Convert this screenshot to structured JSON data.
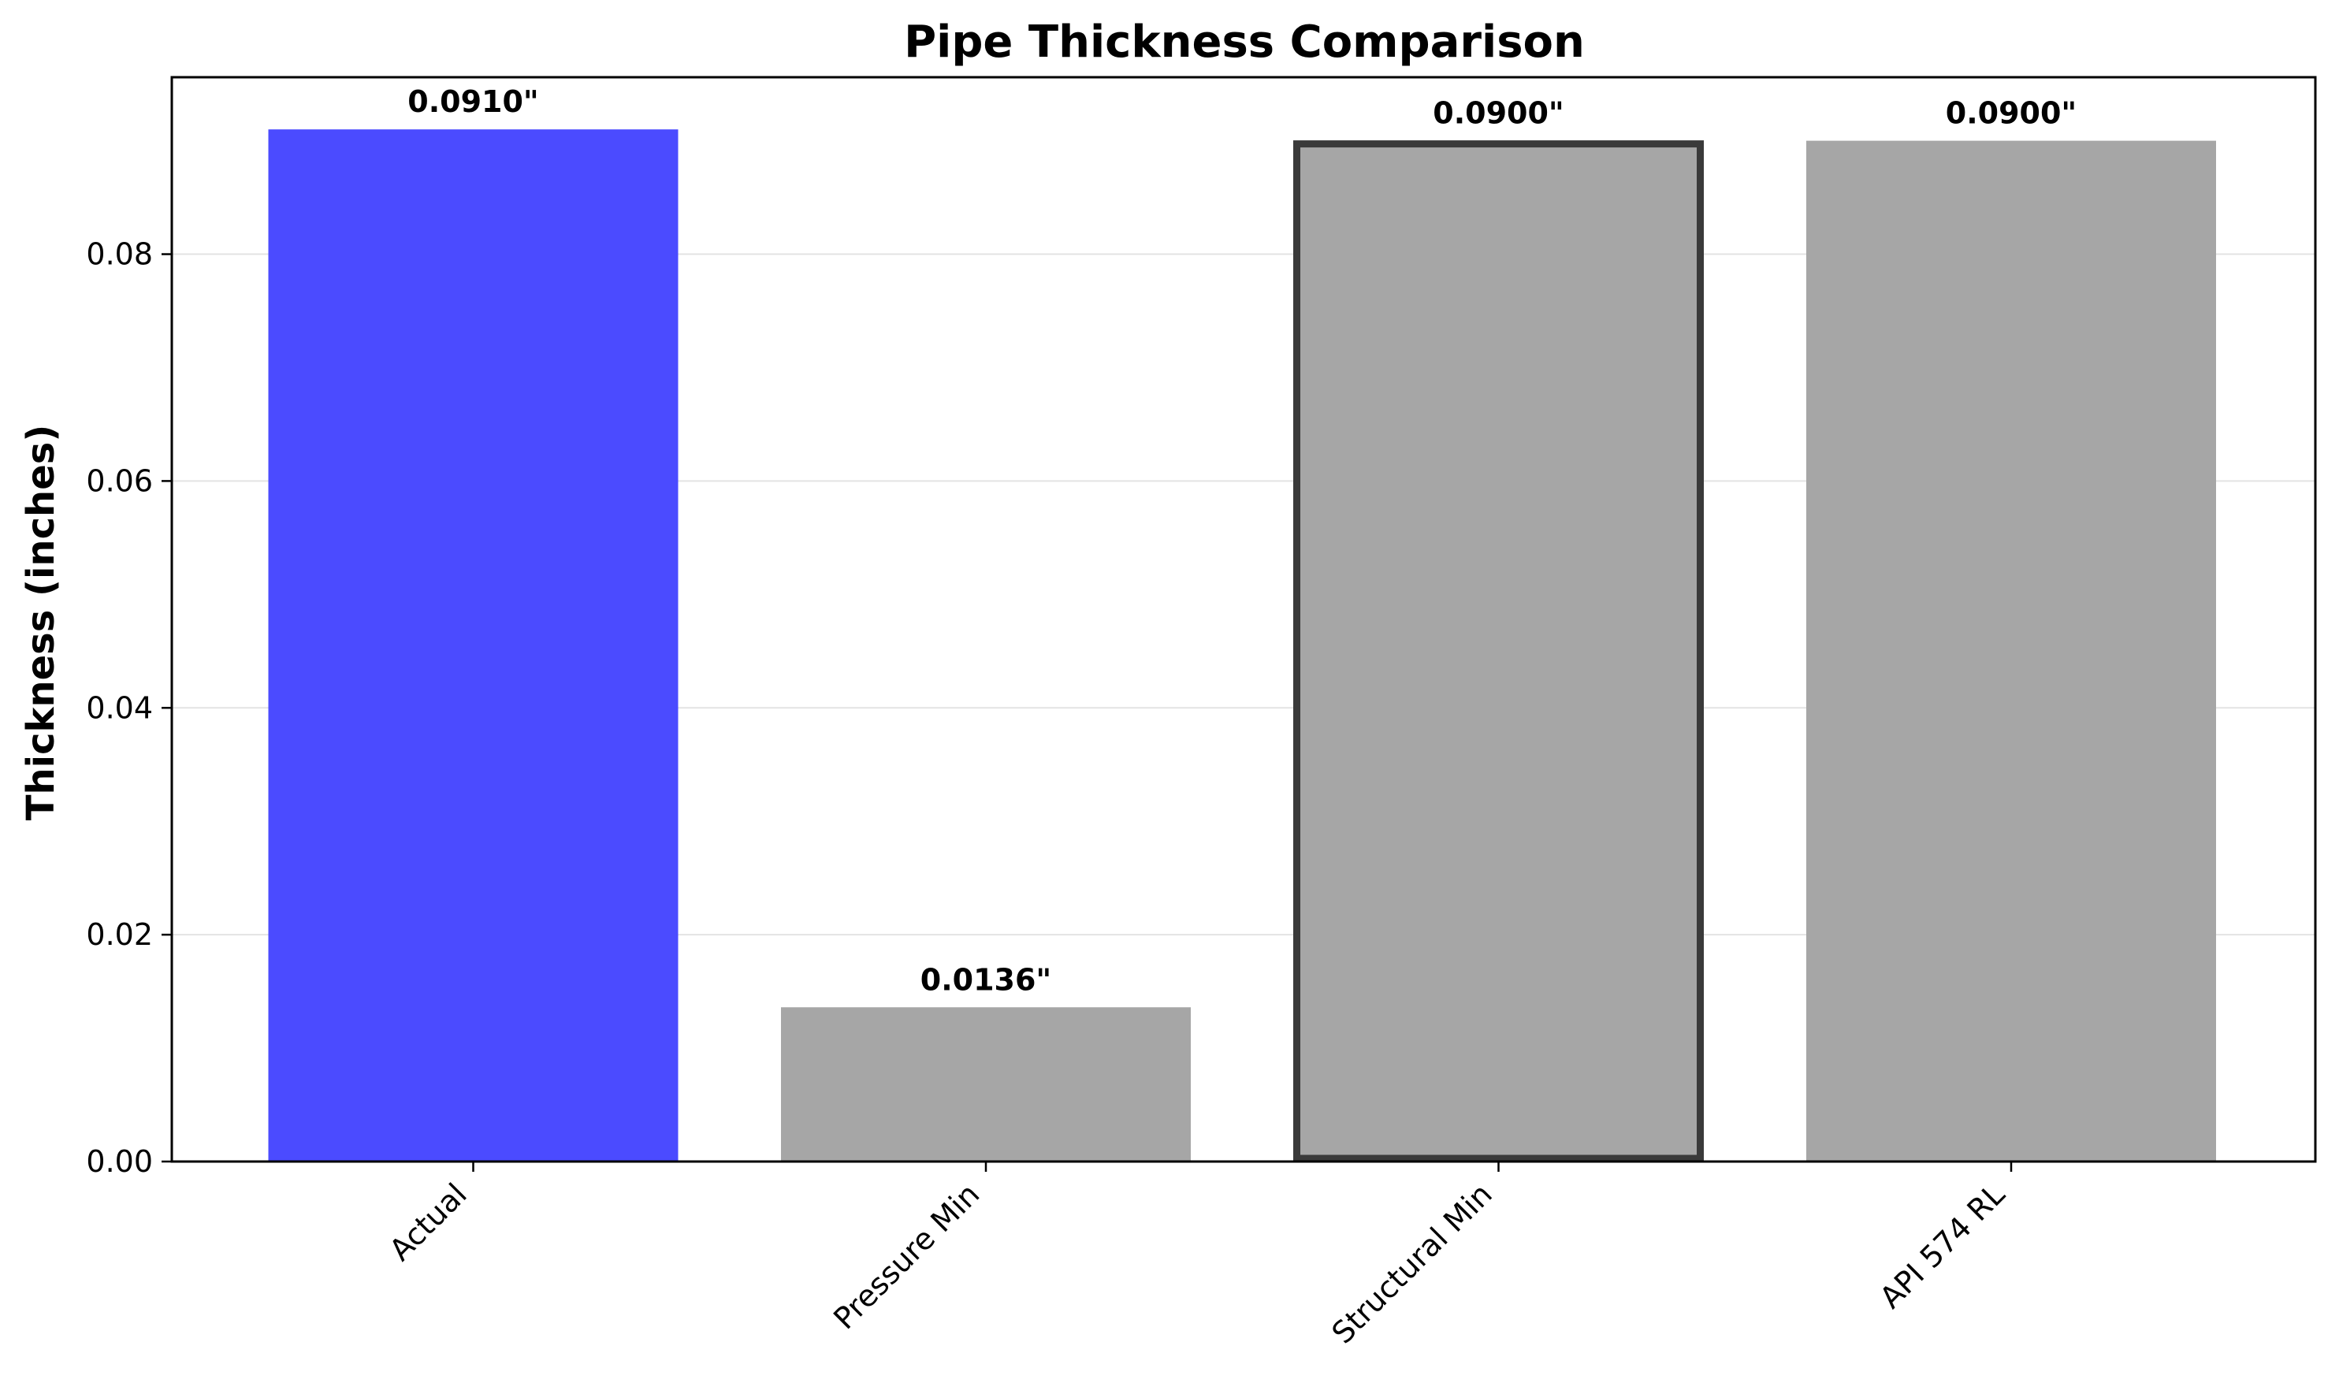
{
  "chart_data": {
    "type": "bar",
    "title": "Pipe Thickness Comparison",
    "xlabel": "",
    "ylabel": "Thickness (inches)",
    "categories": [
      "Actual",
      "Pressure Min",
      "Structural Min",
      "API 574 RL"
    ],
    "values": [
      0.091,
      0.0136,
      0.09,
      0.09
    ],
    "value_labels": [
      "0.0910\"",
      "0.0136\"",
      "0.0900\"",
      "0.0900\""
    ],
    "bar_colors": [
      "#4b4bff",
      "#a6a6a6",
      "#a6a6a6",
      "#a6a6a6"
    ],
    "highlighted_category": "Structural Min",
    "highlight_edge_color": "#3a3a3a",
    "ylim": [
      0,
      0.0956
    ],
    "yticks": [
      0.0,
      0.02,
      0.04,
      0.06,
      0.08
    ],
    "ytick_labels": [
      "0.00",
      "0.02",
      "0.04",
      "0.06",
      "0.08"
    ],
    "grid": "horizontal",
    "legend": "none"
  }
}
